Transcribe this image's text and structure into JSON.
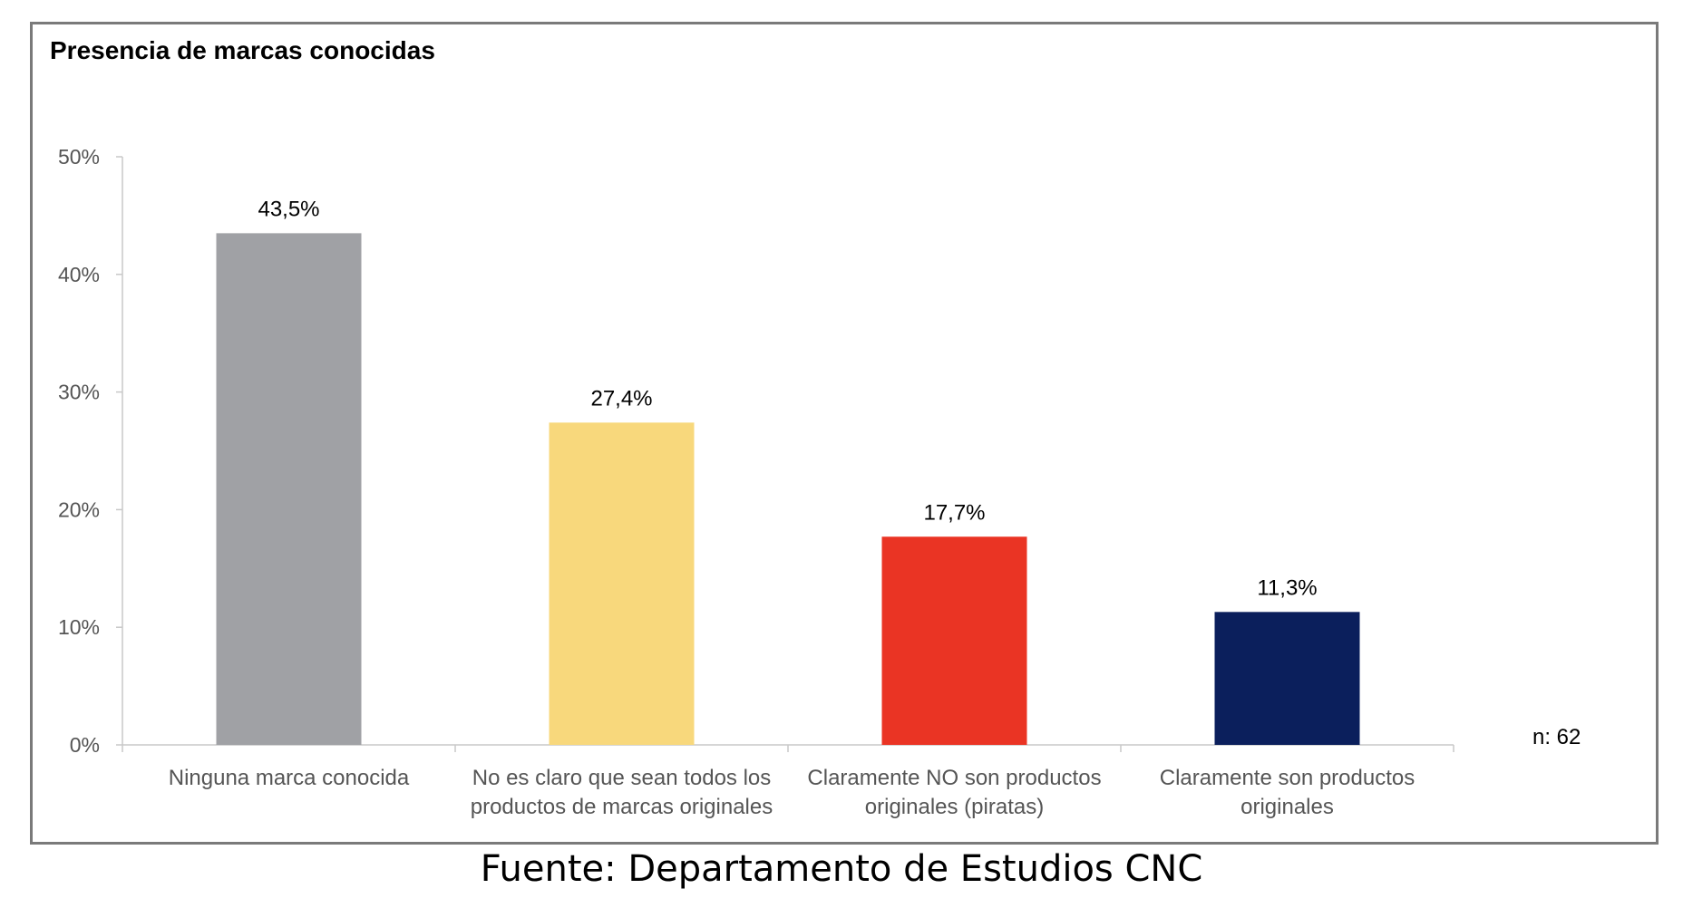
{
  "title": "Presencia de marcas conocidas",
  "source": "Fuente: Departamento de Estudios CNC",
  "sample_size": "n: 62",
  "chart_data": {
    "type": "bar",
    "title": "Presencia de marcas conocidas",
    "categories": [
      [
        "Ninguna marca conocida"
      ],
      [
        "No es claro que sean todos los",
        "productos de marcas originales"
      ],
      [
        "Claramente NO son productos",
        "originales (piratas)"
      ],
      [
        "Claramente son productos",
        "originales"
      ]
    ],
    "values": [
      43.5,
      27.4,
      17.7,
      11.3
    ],
    "data_labels": [
      "43,5%",
      "27,4%",
      "17,7%",
      "11,3%"
    ],
    "colors": [
      "#a0a1a5",
      "#f8d87c",
      "#ea3424",
      "#0b1f5c"
    ],
    "ylim": [
      0,
      50
    ],
    "yticks": [
      0,
      10,
      20,
      30,
      40,
      50
    ],
    "ytick_labels": [
      "0%",
      "10%",
      "20%",
      "30%",
      "40%",
      "50%"
    ],
    "xlabel": "",
    "ylabel": "",
    "grid": false,
    "legend": false
  }
}
